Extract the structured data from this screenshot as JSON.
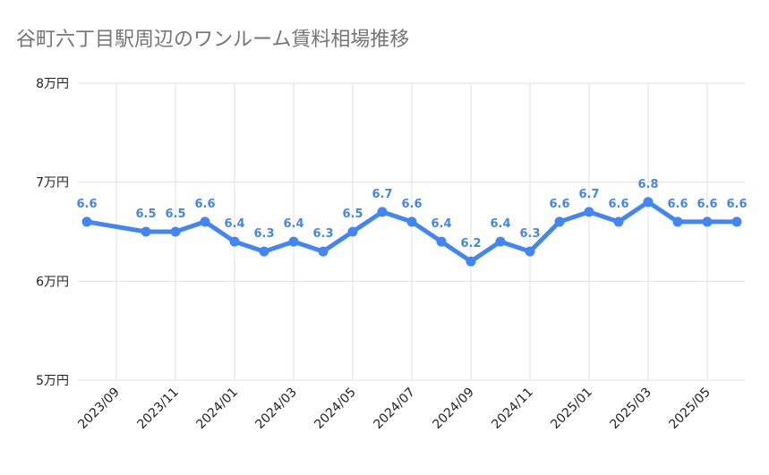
{
  "chart_data": {
    "type": "line",
    "title": "谷町六丁目駅周辺のワンルーム賃料相場推移",
    "x": [
      "2023/08",
      "2023/09",
      "2023/10",
      "2023/11",
      "2023/12",
      "2024/01",
      "2024/02",
      "2024/03",
      "2024/04",
      "2024/05",
      "2024/06",
      "2024/07",
      "2024/08",
      "2024/09",
      "2024/10",
      "2024/11",
      "2024/12",
      "2025/01",
      "2025/02",
      "2025/03",
      "2025/04",
      "2025/05",
      "2025/06"
    ],
    "x_tick_labels": [
      "2023/09",
      "2023/11",
      "2024/01",
      "2024/03",
      "2024/05",
      "2024/07",
      "2024/09",
      "2024/11",
      "2025/01",
      "2025/03",
      "2025/05"
    ],
    "series": [
      {
        "values": [
          6.6,
          null,
          6.5,
          6.5,
          6.6,
          6.4,
          6.3,
          6.4,
          6.3,
          6.5,
          6.7,
          6.6,
          6.4,
          6.2,
          6.4,
          6.3,
          6.6,
          6.7,
          6.6,
          6.8,
          6.6,
          6.6,
          6.6
        ],
        "data_labels": [
          "6.6",
          "",
          "6.5",
          "6.5",
          "6.6",
          "6.4",
          "6.3",
          "6.4",
          "6.3",
          "6.5",
          "6.7",
          "6.6",
          "6.4",
          "6.2",
          "6.4",
          "6.3",
          "6.6",
          "6.7",
          "6.6",
          "6.8",
          "6.6",
          "6.6",
          "6.6"
        ],
        "color": "#4285f4"
      }
    ],
    "y_ticks": [
      {
        "value": 5,
        "label": "5万円"
      },
      {
        "value": 6,
        "label": "6万円"
      },
      {
        "value": 7,
        "label": "7万円"
      },
      {
        "value": 8,
        "label": "8万円"
      }
    ],
    "ylim": [
      5,
      8
    ],
    "xlabel": "",
    "ylabel": "",
    "grid": true,
    "legend": "none",
    "gridline_color": "#e0e0e0"
  }
}
